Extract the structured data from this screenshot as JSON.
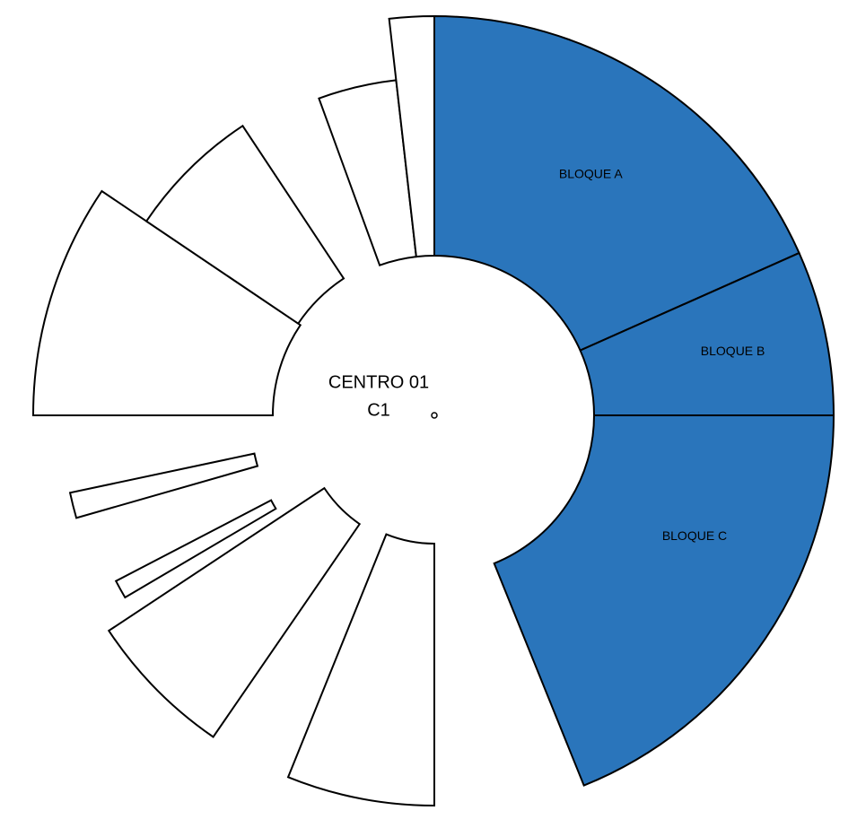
{
  "center": {
    "title": "CENTRO 01",
    "subtitle": "C1"
  },
  "colors": {
    "highlight": "#2a75bb",
    "empty": "#ffffff",
    "stroke": "#000000"
  },
  "sectors": [
    {
      "label": "BLOQUE A",
      "highlighted": true
    },
    {
      "label": "BLOQUE B",
      "highlighted": true
    },
    {
      "label": "BLOQUE C",
      "highlighted": true
    },
    {
      "label": "",
      "highlighted": false
    },
    {
      "label": "",
      "highlighted": false
    },
    {
      "label": "",
      "highlighted": false
    },
    {
      "label": "",
      "highlighted": false
    },
    {
      "label": "",
      "highlighted": false
    },
    {
      "label": "",
      "highlighted": false
    },
    {
      "label": "",
      "highlighted": false
    },
    {
      "label": "",
      "highlighted": false
    }
  ]
}
